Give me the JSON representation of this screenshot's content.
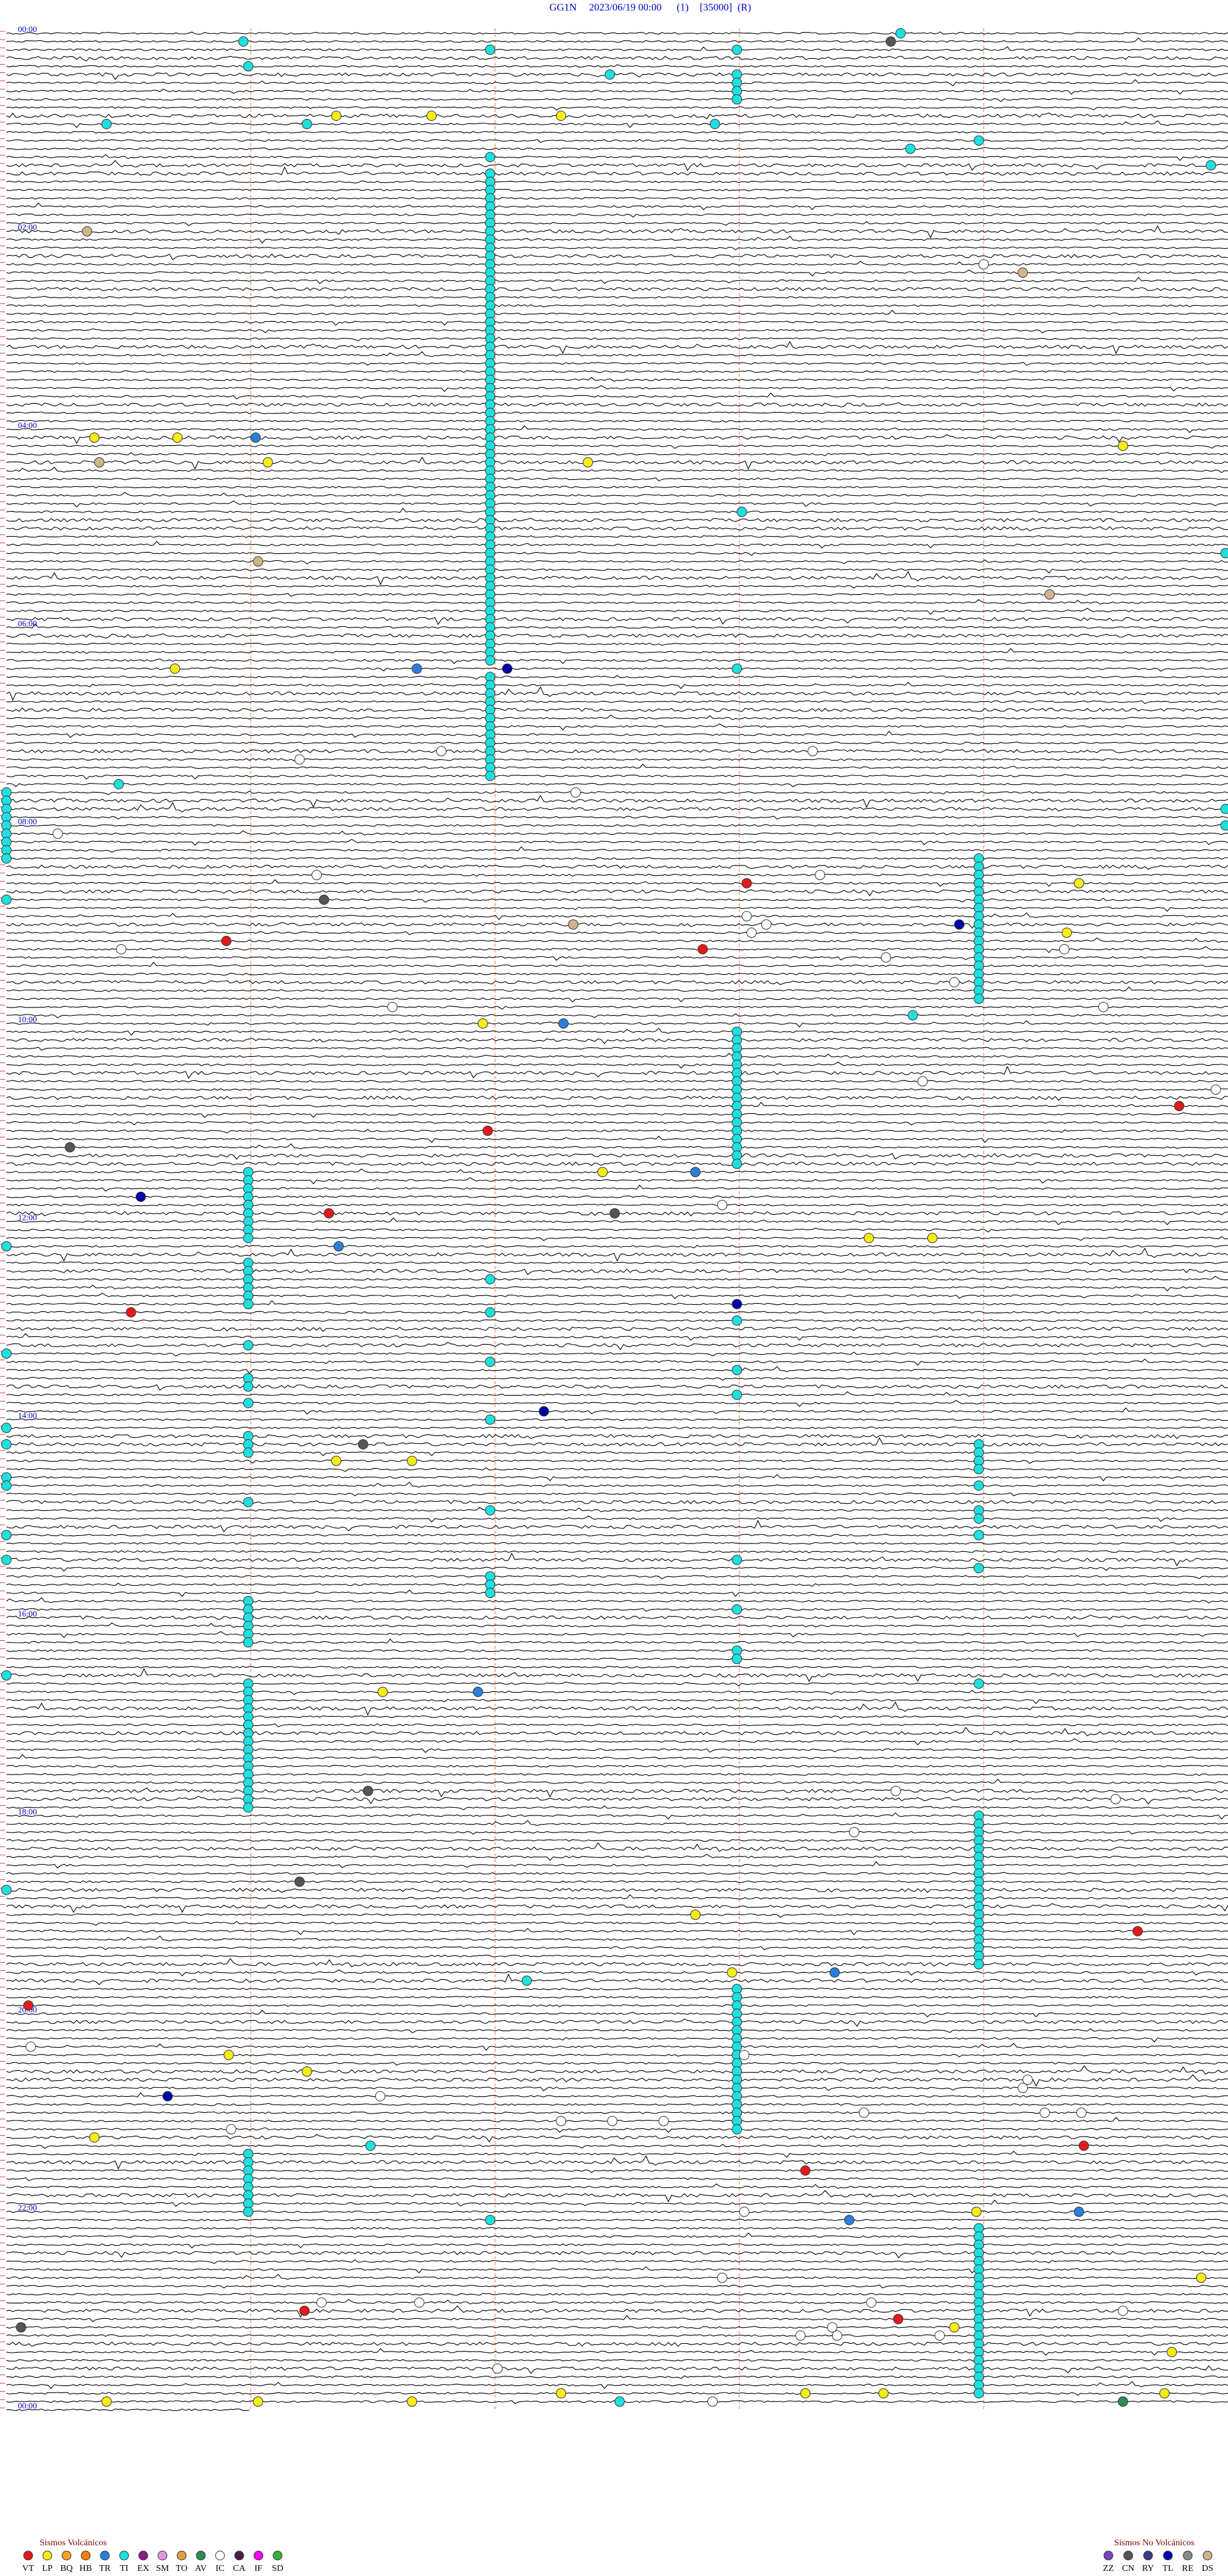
{
  "header": {
    "station": "GG1N",
    "datetime": "2023/06/19 00:00",
    "channel": "(1)",
    "scale": "[35000]",
    "mode": "(R)"
  },
  "hour_labels": [
    "00:00",
    "02:00",
    "04:00",
    "06:00",
    "08:00",
    "10:00",
    "12:00",
    "14:00",
    "16:00",
    "18:00",
    "20:00",
    "22:00",
    "00:00"
  ],
  "events": [
    {
      "code": "TI",
      "t": [
        3.66,
        5.97,
        11.98,
        12.99,
        20.99,
        27.47,
        27.99,
        32.99,
        37.99,
        42.99,
        55.41,
        56.23,
        57.9,
        68.98,
        73.7,
        76.98,
        84.93,
        86.98,
        91.98,
        96.98,
        101.98,
        106.98,
        111.98,
        116.98,
        121.98,
        126.98,
        131.98,
        136.98,
        141.98,
        146.98,
        151.98,
        156.98,
        161.98,
        166.98,
        171.98,
        176.98,
        181.98,
        186.98,
        191.98,
        196.98,
        201.98,
        206.98,
        211.98,
        216.98,
        221.98,
        226.98,
        231.98,
        236.98,
        241.98,
        246.98,
        251.98,
        256.98,
        261.98,
        266.98,
        271.98,
        276.98,
        281.98,
        286.98,
        291.98,
        296.98,
        301.98,
        306.98,
        311.98,
        316.98,
        321.98,
        326.98,
        331.98,
        336.98,
        341.98,
        346.98,
        351.98,
        356.98,
        361.98,
        366.98,
        371.98,
        376.98,
        381.98,
        391.98,
        396.98,
        401.98,
        406.98,
        411.98,
        416.98,
        421.98,
        426.98,
        431.98,
        436.98,
        441.98,
        446.98,
        451.98,
        293.01,
        319.99,
        387.99,
        455.46,
        460,
        465,
        470,
        475,
        480,
        485,
        490,
        495,
        500,
        474.99,
        484.99,
        503.98,
        508.98,
        513.98,
        518.98,
        523.98,
        528.98,
        533.98,
        538.98,
        543.98,
        548.98,
        553.98,
        558.98,
        563.98,
        568.98,
        573.98,
        578.98,
        583.98,
        588.98,
        525,
        598.71,
        607.99,
        612.99,
        617.99,
        622.99,
        627.99,
        632.99,
        637.99,
        642.99,
        647.99,
        652.99,
        657.99,
        662.99,
        667.99,
        672.99,
        677.99,
        682.99,
        687.99,
        690.99,
        695.99,
        700.99,
        705.99,
        710.99,
        715.99,
        720.99,
        725.99,
        730.99,
        735,
        745.99,
        750.99,
        755.99,
        760.99,
        765.99,
        770.99,
        756.98,
        776.98,
        782.99,
        795.99,
        800,
        806.98,
        812.99,
        815.99,
        820.99,
        827.99,
        830.99,
        841.98,
        845,
        855,
        850.99,
        855.99,
        860.99,
        858.98,
        863.98,
        868.98,
        873.98,
        875,
        880,
        883.98,
        890.99,
        896.98,
        898.98,
        903.98,
        910,
        913.98,
        925,
        927.99,
        933.98,
        936.98,
        941.98,
        946.98,
        950.99,
        955.99,
        960.99,
        965.99,
        970.99,
        975.99,
        957.99,
        982.99,
        987.99,
        995,
        1003.98,
        1000.99,
        1005.99,
        1010.99,
        1015.99,
        1020.99,
        1025.99,
        1030.99,
        1035.99,
        1040.99,
        1045.99,
        1050.99,
        1055.99,
        1060.99,
        1065.99,
        1070.99,
        1075.99,
        1083.98,
        1088.98,
        1093.98,
        1098.98,
        1103.98,
        1108.98,
        1113.98,
        1118.98,
        1123.98,
        1128.98,
        1133.98,
        1138.98,
        1143.98,
        1148.98,
        1153.98,
        1158.98,
        1163.98,
        1168.98,
        1173.98,
        1125,
        1182.13,
        1187.99,
        1192.99,
        1197.99,
        1202.99,
        1207.99,
        1212.99,
        1217.99,
        1222.99,
        1227.99,
        1232.99,
        1237.99,
        1242.99,
        1247.99,
        1252.99,
        1257.99,
        1262.99,
        1267.99,
        1272.99,
        1281.49,
        1285.99,
        1290.99,
        1295.99,
        1300.99,
        1305.99,
        1310.99,
        1315.99,
        1320.99,
        1326.98,
        1333.98,
        1338.98,
        1343.98,
        1348.98,
        1353.98,
        1358.98,
        1363.98,
        1368.98,
        1373.98,
        1378.98,
        1383.98,
        1388.98,
        1393.98,
        1398.98,
        1403.98,
        1408.98,
        1413.98,
        1418.98,
        1423.98,
        1428.98,
        1433.98,
        1437.51
      ]
    },
    {
      "code": "LP",
      "t": [
        51.35,
        51.74,
        52.27,
        245.36,
        245.7,
        254.57,
        261.07,
        262.38,
        385.69,
        519.39,
        549.34,
        601.95,
        692.44,
        733.53,
        733.79,
        866.35,
        866.66,
        1006.54,
        1142.82,
        1177.97,
        1225.91,
        1236.23,
        1275.36,
        1323.97,
        1364.89,
        1393.88,
        1409.77,
        1432.27,
        1433.27,
        1433.59,
        1434.74,
        1435.41,
        1436.03,
        1436.66
      ]
    },
    {
      "code": "TR",
      "t": [
        246.02,
        386.68,
        602.28,
        692.82,
        736.36,
        1006.93,
        1178.39,
        1324.39,
        1328.45
      ]
    },
    {
      "code": "TL",
      "t": [
        387.05,
        543.9,
        705.55,
        772.99,
        837.2,
        1250.66
      ]
    },
    {
      "code": "VT",
      "t": [
        518.03,
        550.9,
        557.85,
        654.8,
        666.97,
        716.32,
        775.51,
        1154.63,
        1195.09,
        1284.41,
        1298.27,
        1381.22,
        1388.65
      ]
    },
    {
      "code": "IC",
      "t": [
        144.0,
        436.78,
        438.3,
        441.2,
        462.33,
        485.21,
        511.27,
        513.33,
        538.03,
        543.11,
        548.05,
        555.47,
        559.33,
        563.6,
        578.88,
        591.58,
        594.49,
        638.75,
        644.95,
        712.93,
        1068.64,
        1074.54,
        1093.47,
        1220.1,
        1228.02,
        1244.18,
        1249.16,
        1251.53,
        1263.51,
        1264.25,
        1264.4,
        1267.27,
        1267.48,
        1267.69,
        1270.92,
        1323.02,
        1362.93,
        1376.29,
        1376.69,
        1378.54,
        1384.57,
        1393.38,
        1398.25,
        1398.4,
        1398.82,
        1417.01,
        1437.89
      ]
    },
    {
      "code": "DS",
      "t": [
        120.33,
        149.16,
        260.38,
        321.03,
        344.27,
        542.32
      ]
    },
    {
      "code": "CN",
      "t": [
        8.62,
        526.3,
        675.26,
        717.49,
        856.46,
        1066.48,
        1121.2,
        1390.06
      ]
    },
    {
      "code": "AV",
      "t": [
        1439.57
      ]
    }
  ],
  "legend": {
    "volcanic": {
      "title": "Sismos Volcánicos",
      "items": [
        {
          "code": "VT",
          "color": "#e31a1c"
        },
        {
          "code": "LP",
          "color": "#f5ec1a"
        },
        {
          "code": "BQ",
          "color": "#f7a21b"
        },
        {
          "code": "HB",
          "color": "#ff7f00"
        },
        {
          "code": "TR",
          "color": "#2b7fd9"
        },
        {
          "code": "TI",
          "color": "#1fe0e0"
        },
        {
          "code": "EX",
          "color": "#8b1a8b"
        },
        {
          "code": "SM",
          "color": "#e596e0"
        },
        {
          "code": "TO",
          "color": "#e0a040"
        },
        {
          "code": "AV",
          "color": "#2e8b57"
        },
        {
          "code": "IC",
          "color": "#ffffff"
        },
        {
          "code": "CA",
          "color": "#4a1f44"
        },
        {
          "code": "IF",
          "color": "#ff00ff"
        },
        {
          "code": "SD",
          "color": "#33b033"
        }
      ]
    },
    "non_volcanic": {
      "title": "Sismos No Volcánicos",
      "items": [
        {
          "code": "ZZ",
          "color": "#8040c0"
        },
        {
          "code": "CN",
          "color": "#555555"
        },
        {
          "code": "RY",
          "color": "#3a3a8a"
        },
        {
          "code": "TL",
          "color": "#0000a8"
        },
        {
          "code": "RE",
          "color": "#8c8c8c"
        },
        {
          "code": "DS",
          "color": "#d2b48c"
        }
      ]
    }
  }
}
